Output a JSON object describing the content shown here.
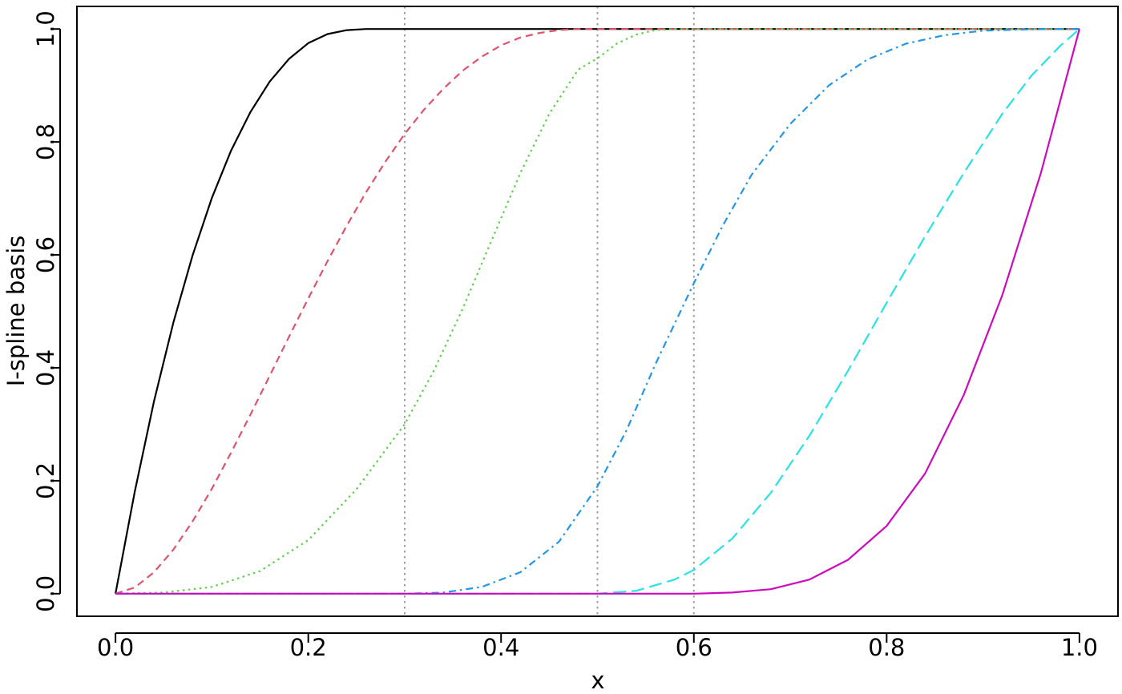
{
  "chart_data": {
    "type": "line",
    "title": "",
    "xlabel": "x",
    "ylabel": "I-spline basis",
    "xlim": [
      -0.04,
      1.04
    ],
    "ylim": [
      -0.04,
      1.04
    ],
    "x_ticks": [
      "0.0",
      "0.2",
      "0.4",
      "0.6",
      "0.8",
      "1.0"
    ],
    "y_ticks": [
      "0.0",
      "0.2",
      "0.4",
      "0.6",
      "0.8",
      "1.0"
    ],
    "x_tick_values": [
      0,
      0.2,
      0.4,
      0.6,
      0.8,
      1.0
    ],
    "y_tick_values": [
      0,
      0.2,
      0.4,
      0.6,
      0.8,
      1.0
    ],
    "knots": [
      0.3,
      0.5,
      0.6
    ],
    "knot_line_color": "#9e9e9e",
    "legend": "none",
    "grid": false,
    "series": [
      {
        "color": "#000000",
        "dash": "solid",
        "x": [
          0,
          0.02,
          0.04,
          0.06,
          0.08,
          0.1,
          0.12,
          0.14,
          0.16,
          0.18,
          0.2,
          0.22,
          0.24,
          0.26,
          0.28,
          0.3,
          0.5,
          0.8,
          1.0
        ],
        "values": [
          0,
          0.181,
          0.341,
          0.48,
          0.599,
          0.701,
          0.785,
          0.853,
          0.907,
          0.947,
          0.975,
          0.991,
          0.998,
          1.0,
          1.0,
          1.0,
          1.0,
          1.0,
          1.0
        ]
      },
      {
        "color": "#df536b",
        "dash": "dashed",
        "x": [
          0,
          0.02,
          0.04,
          0.06,
          0.08,
          0.1,
          0.12,
          0.14,
          0.16,
          0.18,
          0.2,
          0.22,
          0.24,
          0.26,
          0.28,
          0.3,
          0.32,
          0.34,
          0.36,
          0.38,
          0.4,
          0.42,
          0.44,
          0.46,
          0.48,
          0.5,
          0.52,
          0.54,
          0.56,
          0.6,
          0.8,
          1.0
        ],
        "values": [
          0,
          0.011,
          0.038,
          0.078,
          0.128,
          0.186,
          0.25,
          0.317,
          0.386,
          0.455,
          0.523,
          0.589,
          0.652,
          0.711,
          0.765,
          0.814,
          0.857,
          0.894,
          0.926,
          0.951,
          0.971,
          0.985,
          0.993,
          0.998,
          1.0,
          1.0,
          1.0,
          1.0,
          1.0,
          1.0,
          1.0,
          1.0
        ]
      },
      {
        "color": "#61d04f",
        "dash": "dotted",
        "x": [
          0,
          0.05,
          0.1,
          0.15,
          0.2,
          0.25,
          0.3,
          0.33,
          0.36,
          0.39,
          0.42,
          0.45,
          0.48,
          0.5,
          0.52,
          0.54,
          0.56,
          0.58,
          0.6,
          0.8,
          1.0
        ],
        "values": [
          0,
          0.002,
          0.012,
          0.04,
          0.095,
          0.185,
          0.3,
          0.394,
          0.504,
          0.625,
          0.745,
          0.85,
          0.928,
          0.948,
          0.974,
          0.99,
          0.998,
          1.0,
          1.0,
          1.0,
          1.0
        ]
      },
      {
        "color": "#2297e6",
        "dash": "dashdot",
        "x": [
          0,
          0.3,
          0.34,
          0.38,
          0.42,
          0.46,
          0.5,
          0.53,
          0.56,
          0.6,
          0.63,
          0.66,
          0.7,
          0.74,
          0.78,
          0.82,
          0.86,
          0.9,
          0.94,
          0.97,
          1.0
        ],
        "values": [
          0,
          0,
          0.002,
          0.012,
          0.038,
          0.092,
          0.19,
          0.289,
          0.406,
          0.55,
          0.652,
          0.742,
          0.832,
          0.9,
          0.946,
          0.974,
          0.989,
          0.997,
          0.999,
          1.0,
          1.0
        ]
      },
      {
        "color": "#28e2e5",
        "dash": "longdash",
        "x": [
          0,
          0.5,
          0.54,
          0.58,
          0.6,
          0.64,
          0.68,
          0.72,
          0.76,
          0.8,
          0.84,
          0.88,
          0.92,
          0.95,
          0.98,
          1.0
        ],
        "values": [
          0,
          0,
          0.005,
          0.025,
          0.042,
          0.098,
          0.179,
          0.28,
          0.395,
          0.515,
          0.633,
          0.745,
          0.85,
          0.917,
          0.97,
          1.0
        ]
      },
      {
        "color": "#cd0bbc",
        "dash": "solid",
        "x": [
          0,
          0.6,
          0.64,
          0.68,
          0.72,
          0.76,
          0.8,
          0.84,
          0.88,
          0.92,
          0.96,
          1.0
        ],
        "values": [
          0,
          0,
          0.002,
          0.008,
          0.025,
          0.06,
          0.12,
          0.213,
          0.352,
          0.529,
          0.745,
          1.0
        ]
      }
    ]
  }
}
